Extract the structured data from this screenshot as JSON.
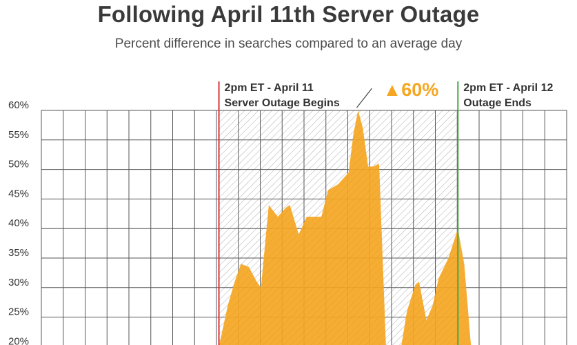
{
  "title": "Following April 11th Server Outage",
  "subtitle": "Percent difference in searches compared to an average day",
  "colors": {
    "area": "#F5A623",
    "start_line": "#d9343b",
    "end_line": "#4aa84a",
    "grid": "#555555",
    "hatch": "#9a9a9a",
    "peak_text": "#F5A623"
  },
  "chart_data": {
    "type": "area",
    "title": "Following April 11th Server Outage",
    "subtitle": "Percent difference in searches compared to an average day",
    "xlabel": "",
    "ylabel": "",
    "y_ticks": [
      "60%",
      "55%",
      "50%",
      "45%",
      "40%",
      "35%",
      "30%",
      "25%",
      "20%"
    ],
    "ylim": [
      20,
      60
    ],
    "grid": true,
    "x_range": [
      0,
      100
    ],
    "series": [
      {
        "values": [
          {
            "x": 33.8,
            "y": 20
          },
          {
            "x": 35.5,
            "y": 27
          },
          {
            "x": 36.8,
            "y": 31
          },
          {
            "x": 38.0,
            "y": 34
          },
          {
            "x": 39.5,
            "y": 33.5
          },
          {
            "x": 41.0,
            "y": 31
          },
          {
            "x": 41.8,
            "y": 30
          },
          {
            "x": 43.3,
            "y": 44
          },
          {
            "x": 45.0,
            "y": 42
          },
          {
            "x": 46.5,
            "y": 43.5
          },
          {
            "x": 47.3,
            "y": 44
          },
          {
            "x": 49.0,
            "y": 39
          },
          {
            "x": 50.5,
            "y": 42
          },
          {
            "x": 52.0,
            "y": 42
          },
          {
            "x": 53.3,
            "y": 42
          },
          {
            "x": 54.6,
            "y": 46.5
          },
          {
            "x": 56.5,
            "y": 47.5
          },
          {
            "x": 58.5,
            "y": 49.5
          },
          {
            "x": 59.4,
            "y": 56
          },
          {
            "x": 60.3,
            "y": 60
          },
          {
            "x": 61.2,
            "y": 57
          },
          {
            "x": 62.2,
            "y": 50.5
          },
          {
            "x": 63.2,
            "y": 50.5
          },
          {
            "x": 64.3,
            "y": 51
          },
          {
            "x": 65.6,
            "y": 20
          },
          {
            "x": 68.5,
            "y": 20
          },
          {
            "x": 69.6,
            "y": 26
          },
          {
            "x": 71.2,
            "y": 30.5
          },
          {
            "x": 71.9,
            "y": 31
          },
          {
            "x": 73.3,
            "y": 24.5
          },
          {
            "x": 74.5,
            "y": 27
          },
          {
            "x": 75.6,
            "y": 31.5
          },
          {
            "x": 77.5,
            "y": 35
          },
          {
            "x": 79.3,
            "y": 40
          },
          {
            "x": 80.5,
            "y": 34
          },
          {
            "x": 81.8,
            "y": 20
          }
        ]
      }
    ],
    "outage_start": {
      "x": 33.8,
      "label_lines": [
        "2pm ET - April 11",
        "Server Outage Begins"
      ]
    },
    "outage_end": {
      "x": 79.3,
      "label_lines": [
        "2pm ET - April 12",
        "Outage Ends"
      ]
    },
    "peak": {
      "x": 60.3,
      "y": 60,
      "label": "60%",
      "marker": "▲"
    }
  }
}
